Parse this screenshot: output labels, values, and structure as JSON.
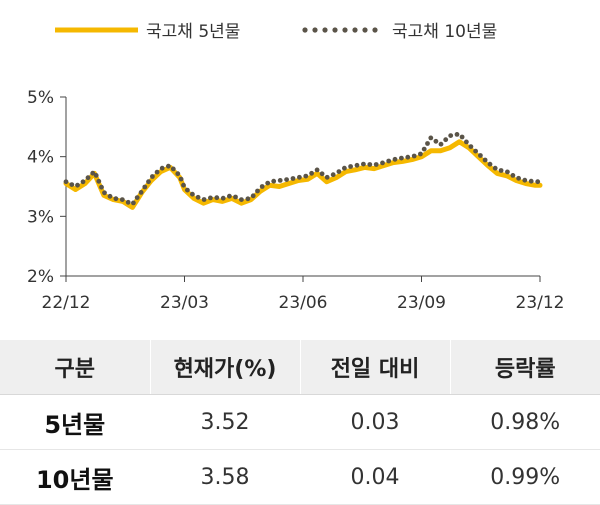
{
  "chart_data": {
    "type": "line",
    "y_ticks": [
      "5%",
      "4%",
      "3%",
      "2%"
    ],
    "x_ticks": [
      "22/12",
      "23/03",
      "23/06",
      "23/09",
      "23/12"
    ],
    "ylim": [
      2,
      5
    ],
    "xlim": [
      0,
      100
    ],
    "x_tick_positions": [
      0,
      25,
      50,
      75,
      100
    ],
    "y_tick_values": [
      5,
      4,
      3,
      2
    ],
    "grid": false,
    "legend_position": "top",
    "series": [
      {
        "name": "국고채 5년물",
        "color": "#F5B800",
        "style": "solid",
        "x": [
          0,
          2,
          4,
          6,
          8,
          10,
          12,
          14,
          16,
          18,
          20,
          22,
          24,
          25,
          27,
          29,
          31,
          33,
          35,
          37,
          39,
          41,
          43,
          45,
          47,
          49,
          51,
          53,
          55,
          57,
          59,
          61,
          63,
          65,
          67,
          69,
          71,
          73,
          75,
          77,
          79,
          81,
          83,
          85,
          87,
          89,
          91,
          93,
          95,
          97,
          99,
          100
        ],
        "y": [
          3.55,
          3.45,
          3.55,
          3.72,
          3.35,
          3.28,
          3.25,
          3.15,
          3.4,
          3.6,
          3.75,
          3.82,
          3.65,
          3.45,
          3.3,
          3.22,
          3.28,
          3.25,
          3.3,
          3.22,
          3.28,
          3.42,
          3.52,
          3.5,
          3.55,
          3.6,
          3.62,
          3.72,
          3.58,
          3.65,
          3.75,
          3.78,
          3.82,
          3.8,
          3.85,
          3.9,
          3.92,
          3.95,
          4.0,
          4.1,
          4.1,
          4.15,
          4.25,
          4.15,
          4.0,
          3.85,
          3.72,
          3.68,
          3.6,
          3.55,
          3.52,
          3.52
        ]
      },
      {
        "name": "국고채 10년물",
        "color": "#5A5448",
        "style": "dotted",
        "x": [
          0,
          2,
          4,
          6,
          8,
          10,
          12,
          14,
          16,
          18,
          20,
          22,
          24,
          25,
          27,
          29,
          31,
          33,
          35,
          37,
          39,
          41,
          43,
          45,
          47,
          49,
          51,
          53,
          55,
          57,
          59,
          61,
          63,
          65,
          67,
          69,
          71,
          73,
          75,
          77,
          79,
          81,
          83,
          85,
          87,
          89,
          91,
          93,
          95,
          97,
          99,
          100
        ],
        "y": [
          3.58,
          3.5,
          3.6,
          3.75,
          3.4,
          3.3,
          3.28,
          3.2,
          3.42,
          3.65,
          3.8,
          3.85,
          3.68,
          3.48,
          3.35,
          3.28,
          3.32,
          3.3,
          3.35,
          3.28,
          3.3,
          3.48,
          3.58,
          3.6,
          3.62,
          3.65,
          3.68,
          3.78,
          3.65,
          3.72,
          3.82,
          3.85,
          3.88,
          3.86,
          3.9,
          3.95,
          3.98,
          4.0,
          4.05,
          4.32,
          4.2,
          4.35,
          4.38,
          4.2,
          4.05,
          3.9,
          3.78,
          3.75,
          3.65,
          3.6,
          3.58,
          3.58
        ]
      }
    ]
  },
  "table": {
    "headers": [
      "구분",
      "현재가(%)",
      "전일 대비",
      "등락률"
    ],
    "rows": [
      {
        "name": "5년물",
        "value": "3.52",
        "change": "0.03",
        "rate": "0.98%"
      },
      {
        "name": "10년물",
        "value": "3.58",
        "change": "0.04",
        "rate": "0.99%"
      }
    ]
  }
}
